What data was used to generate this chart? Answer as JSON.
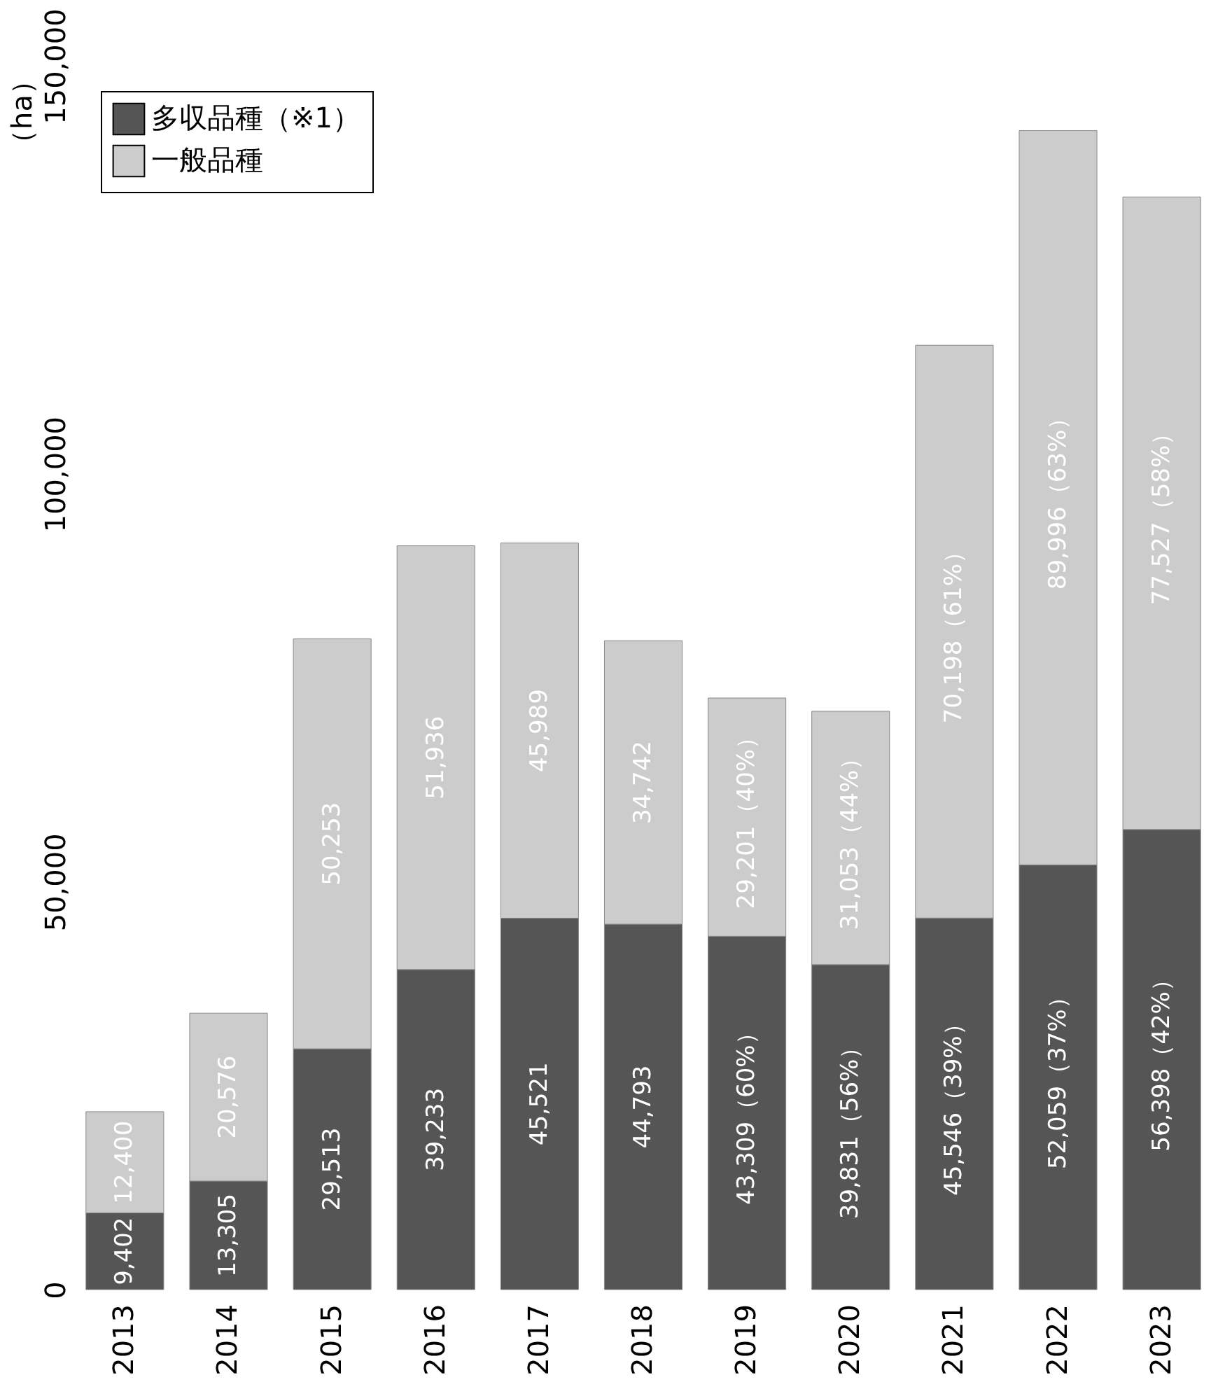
{
  "chart_data": {
    "type": "bar",
    "stacked": true,
    "ylabel": "（ha）",
    "legend": "top left",
    "categories": [
      "2013",
      "2014",
      "2015",
      "2016",
      "2017",
      "2018",
      "2019",
      "2020",
      "2021",
      "2022",
      "2023"
    ],
    "ylim": [
      0,
      150000
    ],
    "yticks": [
      {
        "value": 0,
        "label": "0"
      },
      {
        "value": 50000,
        "label": "50,000"
      },
      {
        "value": 100000,
        "label": "100,000"
      },
      {
        "value": 150000,
        "label": "150,000"
      }
    ],
    "grid": false,
    "series": [
      {
        "name": "多収品種（※1）",
        "color": "#555555",
        "values": [
          9402,
          13305,
          29513,
          39233,
          45521,
          44793,
          43309,
          39831,
          45546,
          52059,
          56398
        ],
        "value_labels": [
          "9,402",
          "13,305",
          "29,513",
          "39,233",
          "45,521",
          "44,793",
          "43,309（60%）",
          "39,831（56%）",
          "45,546（39%）",
          "52,059（37%）",
          "56,398（42%）"
        ]
      },
      {
        "name": "一般品種",
        "color": "#cccccc",
        "values": [
          12400,
          20576,
          50253,
          51936,
          45989,
          34742,
          29201,
          31053,
          70198,
          89996,
          77527
        ],
        "value_labels": [
          "12,400",
          "20,576",
          "50,253",
          "51,936",
          "45,989",
          "34,742",
          "29,201（40%）",
          "31,053（44%）",
          "70,198（61%）",
          "89,996（63%）",
          "77,527（58%）"
        ]
      }
    ]
  }
}
